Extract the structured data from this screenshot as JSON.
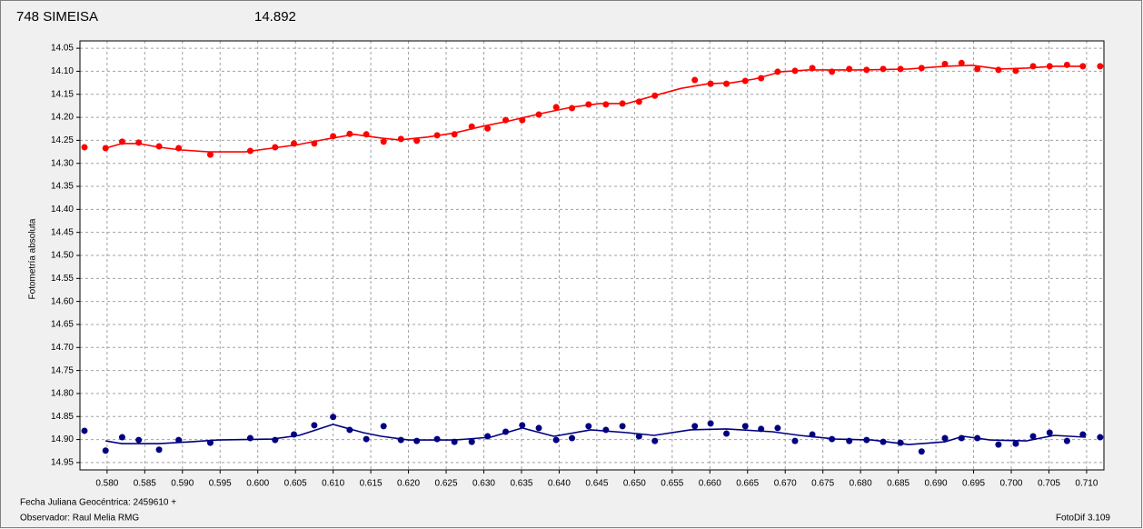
{
  "chart_data": {
    "type": "scatter",
    "title": "748 SIMEISA",
    "title_color": "#ff0000",
    "subtitle": "14.892",
    "subtitle_color": "#000080",
    "y_label": "Fotometría absoluta",
    "x_label": "Fecha Juliana Geocéntrica: 2459610 +",
    "observer": "Observador: Raul Melia RMG",
    "software": "FotoDif 3.109",
    "xlim": [
      0.5764,
      0.7123
    ],
    "ylim": [
      14.034,
      14.966
    ],
    "y_inverted": true,
    "grid": true,
    "xticks": [
      {
        "value": 0.58,
        "label": "0.580"
      },
      0.585,
      {
        "value": 0.59,
        "label": "0.590"
      },
      0.595,
      {
        "value": 0.6,
        "label": "0.600"
      },
      0.605,
      {
        "value": 0.61,
        "label": "0.610"
      },
      0.615,
      {
        "value": 0.62,
        "label": "0.620"
      },
      0.625,
      {
        "value": 0.63,
        "label": "0.630"
      },
      0.635,
      {
        "value": 0.64,
        "label": "0.640"
      },
      0.645,
      {
        "value": 0.65,
        "label": "0.650"
      },
      0.655,
      {
        "value": 0.66,
        "label": "0.660"
      },
      0.665,
      {
        "value": 0.67,
        "label": "0.670"
      },
      0.675,
      {
        "value": 0.68,
        "label": "0.680"
      },
      0.685,
      {
        "value": 0.69,
        "label": "0.690"
      },
      0.695,
      {
        "value": 0.7,
        "label": "0.700"
      },
      0.705,
      {
        "value": 0.71,
        "label": "0.710"
      }
    ],
    "yticks": [
      14.05,
      {
        "value": 14.1,
        "label": "14.10"
      },
      14.15,
      {
        "value": 14.2,
        "label": "14.20"
      },
      14.25,
      {
        "value": 14.3,
        "label": "14.30"
      },
      14.35,
      {
        "value": 14.4,
        "label": "14.40"
      },
      14.45,
      {
        "value": 14.5,
        "label": "14.50"
      },
      14.55,
      {
        "value": 14.6,
        "label": "14.60"
      },
      14.65,
      {
        "value": 14.7,
        "label": "14.70"
      },
      14.75,
      {
        "value": 14.8,
        "label": "14.80"
      },
      14.85,
      {
        "value": 14.9,
        "label": "14.90"
      },
      14.95
    ],
    "series": [
      {
        "type": "markers",
        "color": "#ff0000",
        "x": [
          0.577,
          0.5798,
          0.582,
          0.5842,
          0.5869,
          0.5895,
          0.5937,
          0.599,
          0.6023,
          0.6048,
          0.6075,
          0.61,
          0.6122,
          0.6144,
          0.6167,
          0.619,
          0.6211,
          0.6238,
          0.6261,
          0.6284,
          0.6305,
          0.6329,
          0.6351,
          0.6373,
          0.6396,
          0.6417,
          0.6439,
          0.6462,
          0.6484,
          0.6506,
          0.6527,
          0.658,
          0.6601,
          0.6622,
          0.6647,
          0.6668,
          0.669,
          0.6713,
          0.6736,
          0.6762,
          0.6785,
          0.6808,
          0.683,
          0.6853,
          0.6881,
          0.6912,
          0.6934,
          0.6955,
          0.6983,
          0.7006,
          0.7029,
          0.7051,
          0.7074,
          0.7095,
          0.7118
        ],
        "values": [
          14.265,
          14.267,
          14.253,
          14.255,
          14.263,
          14.267,
          14.281,
          14.273,
          14.265,
          14.257,
          14.257,
          14.241,
          14.236,
          14.237,
          14.253,
          14.247,
          14.251,
          14.239,
          14.237,
          14.22,
          14.224,
          14.206,
          14.206,
          14.194,
          14.178,
          14.18,
          14.172,
          14.172,
          14.17,
          14.166,
          14.153,
          14.119,
          14.127,
          14.127,
          14.121,
          14.115,
          14.101,
          14.099,
          14.093,
          14.101,
          14.095,
          14.097,
          14.095,
          14.095,
          14.093,
          14.084,
          14.082,
          14.095,
          14.097,
          14.099,
          14.089,
          14.089,
          14.086,
          14.089,
          14.089
        ]
      },
      {
        "type": "line",
        "color": "#ff0000",
        "x": [
          0.5798,
          0.582,
          0.5842,
          0.5869,
          0.5899,
          0.5935,
          0.5983,
          0.6019,
          0.6055,
          0.6092,
          0.6128,
          0.6164,
          0.6188,
          0.6225,
          0.6261,
          0.6297,
          0.6333,
          0.6381,
          0.6417,
          0.6454,
          0.649,
          0.6526,
          0.6562,
          0.6598,
          0.6629,
          0.6659,
          0.6695,
          0.6731,
          0.6803,
          0.6864,
          0.6912,
          0.6948,
          0.6984,
          0.702,
          0.7057,
          0.7099
        ],
        "values": [
          14.267,
          14.257,
          14.257,
          14.265,
          14.271,
          14.275,
          14.275,
          14.267,
          14.259,
          14.247,
          14.237,
          14.245,
          14.249,
          14.243,
          14.234,
          14.22,
          14.208,
          14.19,
          14.178,
          14.17,
          14.17,
          14.153,
          14.137,
          14.127,
          14.125,
          14.117,
          14.101,
          14.097,
          14.097,
          14.095,
          14.089,
          14.087,
          14.095,
          14.093,
          14.089,
          14.089
        ]
      },
      {
        "type": "markers",
        "color": "#000080",
        "x": [
          0.577,
          0.5798,
          0.582,
          0.5842,
          0.5869,
          0.5895,
          0.5937,
          0.599,
          0.6023,
          0.6048,
          0.6075,
          0.61,
          0.6122,
          0.6144,
          0.6167,
          0.619,
          0.6211,
          0.6238,
          0.6261,
          0.6284,
          0.6305,
          0.6329,
          0.6351,
          0.6373,
          0.6396,
          0.6417,
          0.6439,
          0.6462,
          0.6484,
          0.6506,
          0.6527,
          0.658,
          0.6601,
          0.6622,
          0.6647,
          0.6668,
          0.669,
          0.6713,
          0.6736,
          0.6762,
          0.6785,
          0.6808,
          0.683,
          0.6853,
          0.6881,
          0.6912,
          0.6934,
          0.6955,
          0.6983,
          0.7006,
          0.7029,
          0.7051,
          0.7074,
          0.7095,
          0.7118
        ],
        "values": [
          14.881,
          14.924,
          14.895,
          14.901,
          14.922,
          14.901,
          14.907,
          14.897,
          14.901,
          14.889,
          14.869,
          14.851,
          14.879,
          14.899,
          14.871,
          14.901,
          14.903,
          14.899,
          14.905,
          14.905,
          14.893,
          14.883,
          14.869,
          14.875,
          14.901,
          14.897,
          14.871,
          14.879,
          14.871,
          14.893,
          14.903,
          14.871,
          14.865,
          14.887,
          14.871,
          14.877,
          14.875,
          14.903,
          14.889,
          14.899,
          14.903,
          14.901,
          14.905,
          14.907,
          14.926,
          14.897,
          14.897,
          14.897,
          14.911,
          14.909,
          14.893,
          14.885,
          14.903,
          14.889,
          14.895
        ]
      },
      {
        "type": "line",
        "color": "#000080",
        "x": [
          0.5798,
          0.582,
          0.5869,
          0.5911,
          0.5947,
          0.6019,
          0.6055,
          0.61,
          0.614,
          0.6164,
          0.62,
          0.6261,
          0.6309,
          0.6351,
          0.6393,
          0.6442,
          0.649,
          0.6526,
          0.6574,
          0.6622,
          0.6683,
          0.6719,
          0.6767,
          0.6815,
          0.6864,
          0.6912,
          0.6936,
          0.6972,
          0.702,
          0.7057,
          0.7099
        ],
        "values": [
          14.903,
          14.909,
          14.909,
          14.905,
          14.901,
          14.899,
          14.891,
          14.867,
          14.885,
          14.893,
          14.901,
          14.901,
          14.895,
          14.875,
          14.893,
          14.879,
          14.885,
          14.891,
          14.879,
          14.877,
          14.883,
          14.891,
          14.899,
          14.901,
          14.911,
          14.905,
          14.893,
          14.901,
          14.903,
          14.891,
          14.895
        ]
      }
    ]
  }
}
